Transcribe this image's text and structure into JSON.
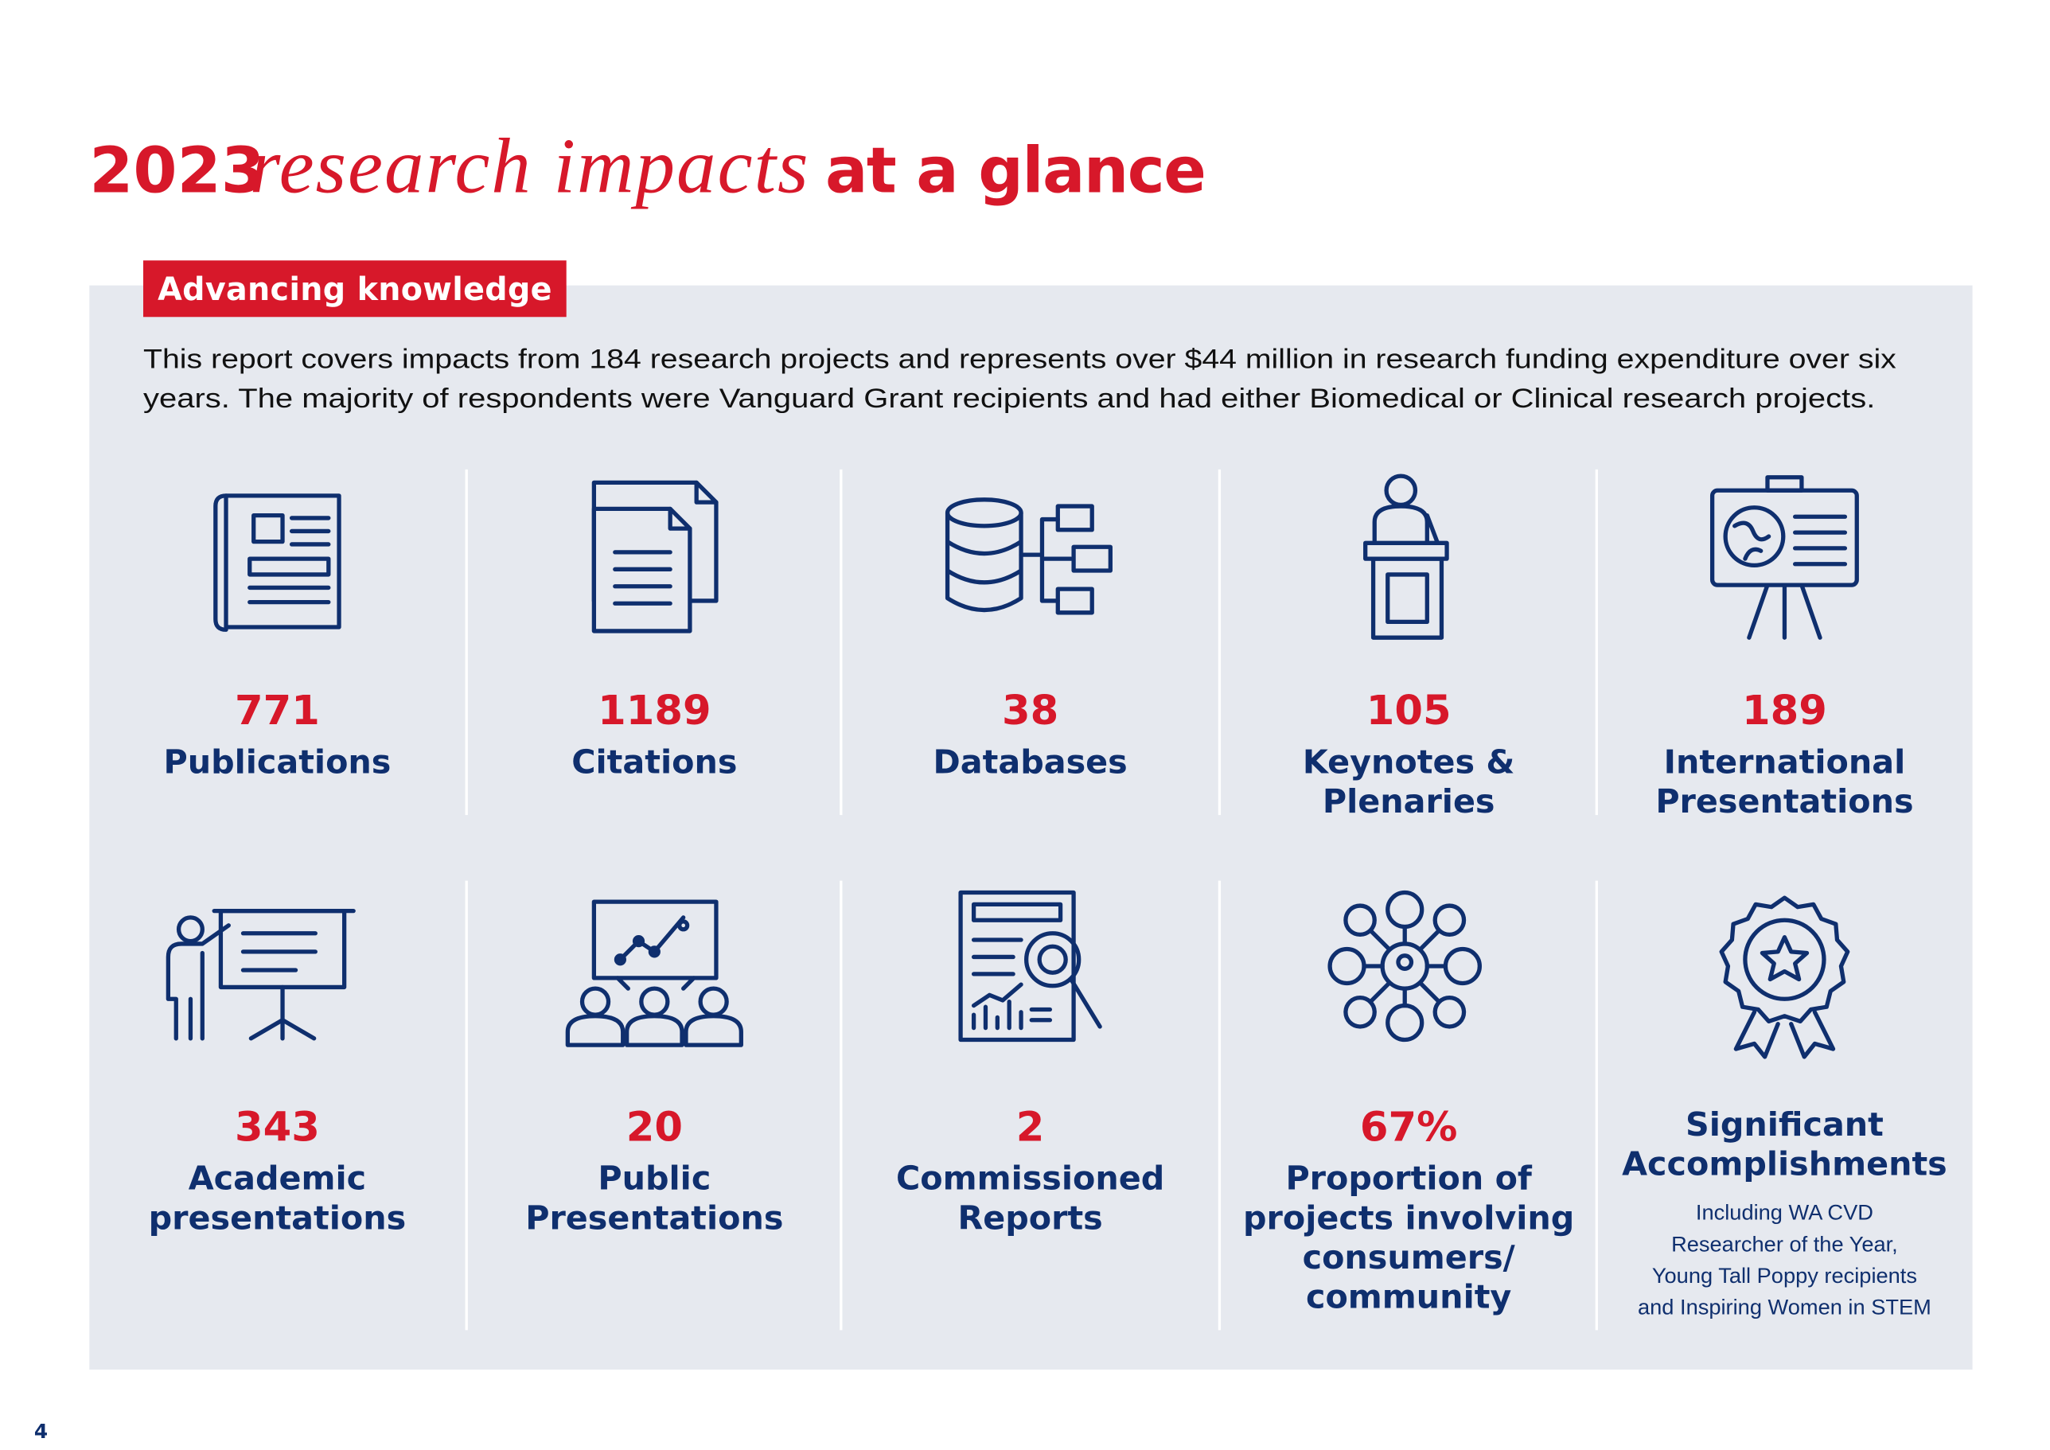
{
  "header": {
    "title": {
      "year": "2023",
      "script": "research impacts",
      "rest": "at a glance"
    }
  },
  "section": {
    "tag": "Advancing knowledge",
    "intro": [
      "This report covers impacts from 184 research projects and represents over $44 million in research funding expenditure over six",
      "years. The majority of respondents were Vanguard Grant recipients and had either Biomedical or Clinical research projects."
    ]
  },
  "stats": [
    {
      "value": "771",
      "label": [
        "Publications"
      ]
    },
    {
      "value": "1189",
      "label": [
        "Citations"
      ]
    },
    {
      "value": "38",
      "label": [
        "Databases"
      ]
    },
    {
      "value": "105",
      "label": [
        "Keynotes &",
        "Plenaries"
      ]
    },
    {
      "value": "189",
      "label": [
        "International",
        "Presentations"
      ]
    },
    {
      "value": "343",
      "label": [
        "Academic",
        "presentations"
      ]
    },
    {
      "value": "20",
      "label": [
        "Public",
        "Presentations"
      ]
    },
    {
      "value": "2",
      "label": [
        "Commissioned",
        "Reports"
      ]
    },
    {
      "value": "67%",
      "label": [
        "Proportion of",
        "projects involving",
        "consumers/",
        "community"
      ]
    },
    {
      "label": [
        "Significant",
        "Accomplishments"
      ],
      "note": [
        "Including WA CVD",
        "Researcher of the Year,",
        "Young Tall Poppy recipients",
        "and Inspiring Women in STEM"
      ]
    }
  ],
  "page_number": "4"
}
